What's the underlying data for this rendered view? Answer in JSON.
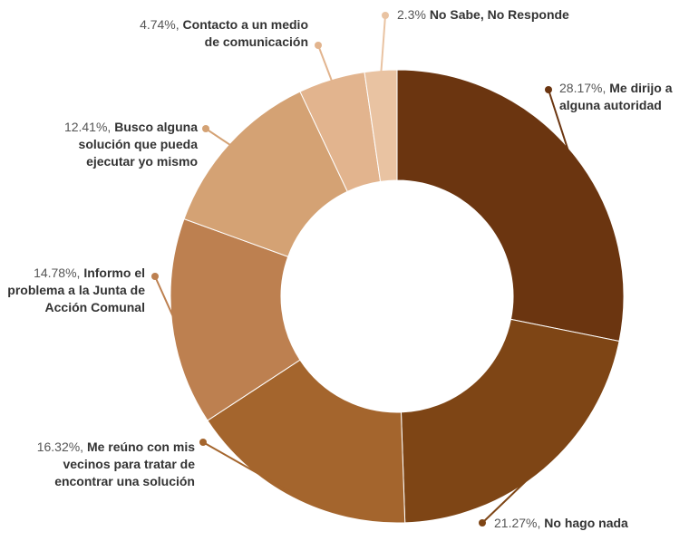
{
  "chart_data": {
    "type": "pie",
    "categories": [
      "Me dirijo a alguna autoridad",
      "No hago nada",
      "Me reúno con mis vecinos para tratar de encontrar una solución",
      "Informo el problema a la Junta de Acción Comunal",
      "Busco alguna solución que pueda ejecutar yo mismo",
      "Contacto a un medio de comunicación",
      "No Sabe, No Responde"
    ],
    "values": [
      28.17,
      21.27,
      16.32,
      14.78,
      12.41,
      4.74,
      2.3
    ],
    "value_labels": [
      "28.17%,",
      "21.27%,",
      "16.32%,",
      "14.78%,",
      "12.41%,",
      "4.74%,",
      "2.3%"
    ],
    "colors": [
      "#6b3510",
      "#7e4515",
      "#a4652d",
      "#bd8050",
      "#d4a274",
      "#e2b48e",
      "#e9c3a2"
    ]
  }
}
